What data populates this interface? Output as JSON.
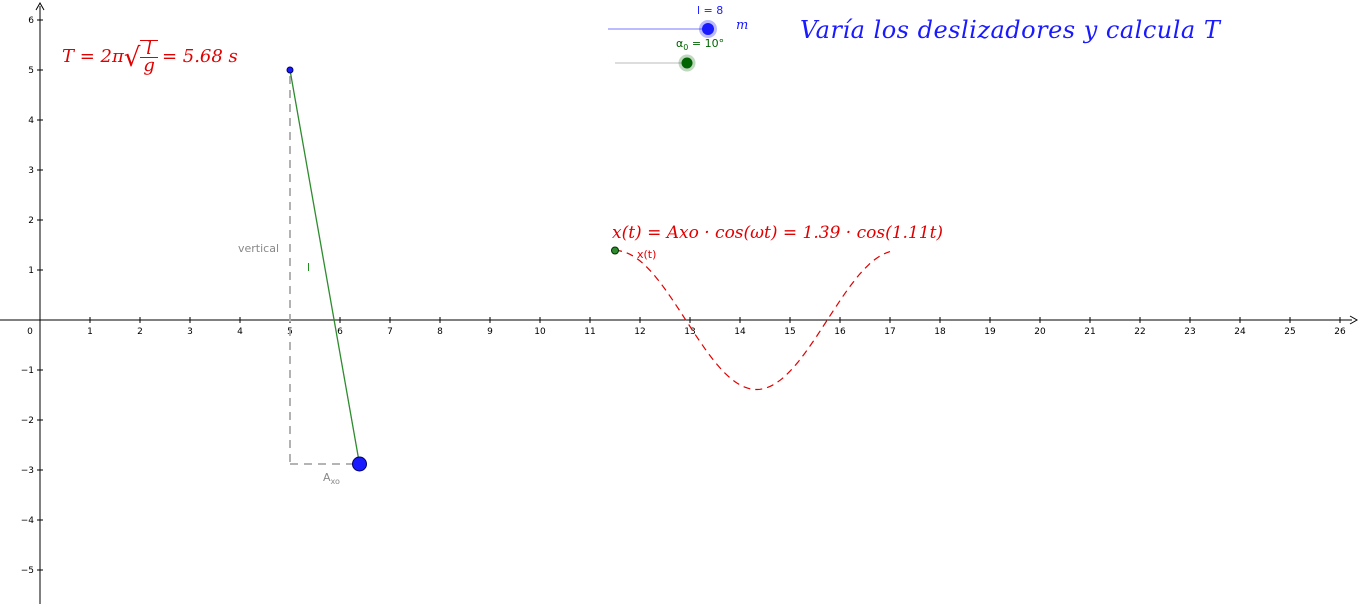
{
  "title": "Varía los deslizadores y calcula T",
  "period_formula": {
    "text": "T = 2π√(l/g) = 5.68 s",
    "lhs": "T = 2π",
    "num": "l",
    "den": "g",
    "rhs": "= 5.68 s"
  },
  "motion_formula": "x(t) = Axo · cos(ωt) = 1.39 · cos(1.11t)",
  "sliders": [
    {
      "name": "l",
      "label": "l = 8",
      "value": 8,
      "min": 0,
      "max": 8,
      "color": "#1a1aff"
    },
    {
      "name": "alpha0",
      "label_main": "α",
      "label_sub": "0",
      "label_rest": " = 10°",
      "value": 10,
      "color": "#006400"
    }
  ],
  "mass_label": "m",
  "labels": {
    "vertical": "vertical",
    "length": "l",
    "amplitude_main": "A",
    "amplitude_sub": "xo",
    "curve": "x(t)"
  },
  "axes": {
    "x_ticks": [
      0,
      1,
      2,
      3,
      4,
      5,
      6,
      7,
      8,
      9,
      10,
      11,
      12,
      13,
      14,
      15,
      16,
      17,
      18,
      19,
      20,
      21,
      22,
      23,
      24,
      25,
      26
    ],
    "y_ticks": [
      6,
      5,
      4,
      3,
      2,
      1,
      -1,
      -2,
      -3,
      -4,
      -5
    ],
    "xlim": [
      -0.5,
      26.4
    ],
    "ylim": [
      -5.7,
      6.2
    ]
  },
  "geometry": {
    "pivot": [
      5,
      5
    ],
    "bob": [
      6.39,
      -2.88
    ],
    "amplitude": 1.39,
    "omega": 1.11,
    "curve_start_x": 11.5,
    "curve_start_y": 1.39,
    "curve_end_x": 17
  },
  "colors": {
    "red": "#e00000",
    "blue": "#1a1aff",
    "green": "#1a8a1a",
    "gray": "#999999"
  }
}
